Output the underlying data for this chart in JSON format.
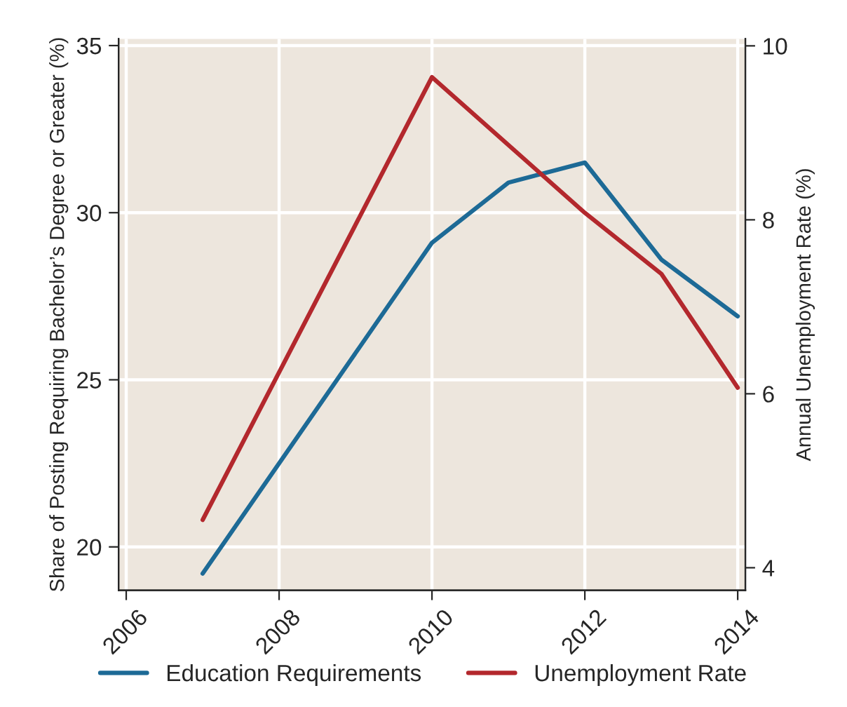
{
  "chart_data": {
    "type": "line",
    "x": [
      2007,
      2010,
      2011,
      2012,
      2013,
      2014
    ],
    "series": [
      {
        "name": "Education Requirements",
        "color": "#1d6a96",
        "values": [
          19.2,
          29.1,
          30.9,
          31.5,
          28.6,
          26.9
        ]
      },
      {
        "name": "Unemployment Rate",
        "color": "#b3282d",
        "axis": "y2",
        "values": [
          4.55,
          9.64,
          8.86,
          8.08,
          7.38,
          6.07
        ]
      }
    ],
    "ylabel": "Share of Posting Requiring Bachelor’s Degree or Greater (%)",
    "y2label": "Annual Unemployment Rate (%)",
    "xlim": [
      2005.9,
      2014.1
    ],
    "xticks": [
      2006,
      2008,
      2010,
      2012,
      2014
    ],
    "ylim": [
      18.7,
      35.2
    ],
    "yticks": [
      20,
      25,
      30,
      35
    ],
    "y2lim": [
      3.74,
      10.08
    ],
    "y2ticks": [
      4,
      6,
      8,
      10
    ],
    "grid": true,
    "legend": "bottom",
    "marker": "none",
    "line_style": "solid"
  }
}
